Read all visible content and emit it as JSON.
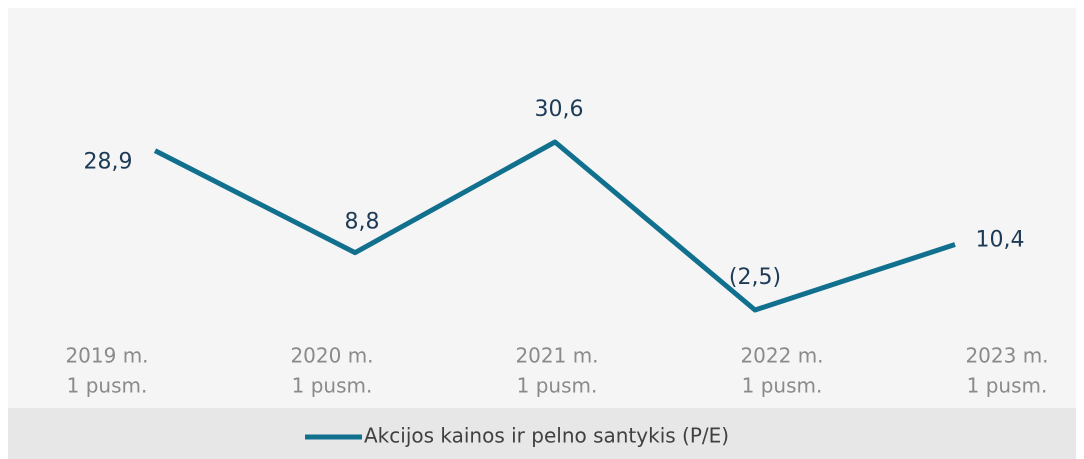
{
  "chart_data": {
    "type": "line",
    "categories": [
      [
        "2019 m.",
        "1 pusm."
      ],
      [
        "2020 m.",
        "1 pusm."
      ],
      [
        "2021 m.",
        "1 pusm."
      ],
      [
        "2022 m.",
        "1 pusm."
      ],
      [
        "2023 m.",
        "1 pusm."
      ]
    ],
    "series": [
      {
        "name": "Akcijos kainos ir pelno santykis (P/E)",
        "color": "#12708f",
        "values": [
          28.9,
          8.8,
          30.6,
          -2.5,
          10.4
        ],
        "value_labels": [
          "28,9",
          "8,8",
          "30,6",
          "(2,5)",
          "10,4"
        ]
      }
    ],
    "legend": "bottom"
  }
}
